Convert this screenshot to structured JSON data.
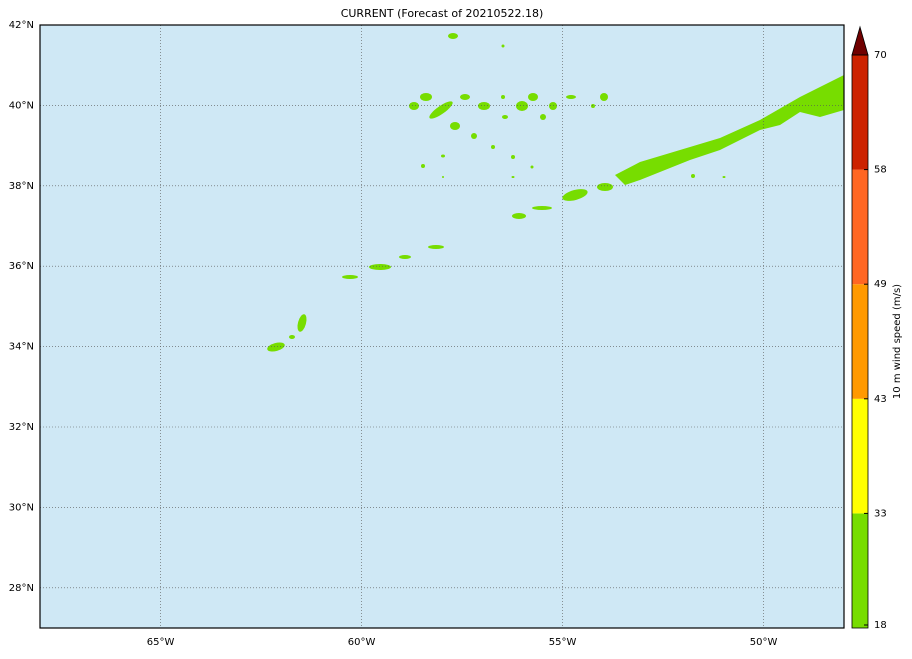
{
  "map": {
    "title": "CURRENT (Forecast of 20210522.18)",
    "lon_range": [
      -68,
      -48
    ],
    "lat_range": [
      27,
      42
    ],
    "lon_ticks": [
      {
        "value": -65,
        "label": "65°W"
      },
      {
        "value": -60,
        "label": "60°W"
      },
      {
        "value": -55,
        "label": "55°W"
      },
      {
        "value": -50,
        "label": "50°W"
      }
    ],
    "lat_ticks": [
      {
        "value": 28,
        "label": "28°N"
      },
      {
        "value": 30,
        "label": "30°N"
      },
      {
        "value": 32,
        "label": "32°N"
      },
      {
        "value": 34,
        "label": "34°N"
      },
      {
        "value": 36,
        "label": "36°N"
      },
      {
        "value": 38,
        "label": "38°N"
      },
      {
        "value": 40,
        "label": "40°N"
      },
      {
        "value": 42,
        "label": "42°N"
      }
    ],
    "ocean_color": "#cfe8f5",
    "colorbar": {
      "label": "10 m wind speed (m/s)",
      "levels": [
        18,
        33,
        43,
        49,
        58,
        70
      ],
      "colors": [
        "#77dd00",
        "#ffff00",
        "#ff9900",
        "#ff6622",
        "#cc2200"
      ],
      "extend_color": "#700000"
    }
  }
}
